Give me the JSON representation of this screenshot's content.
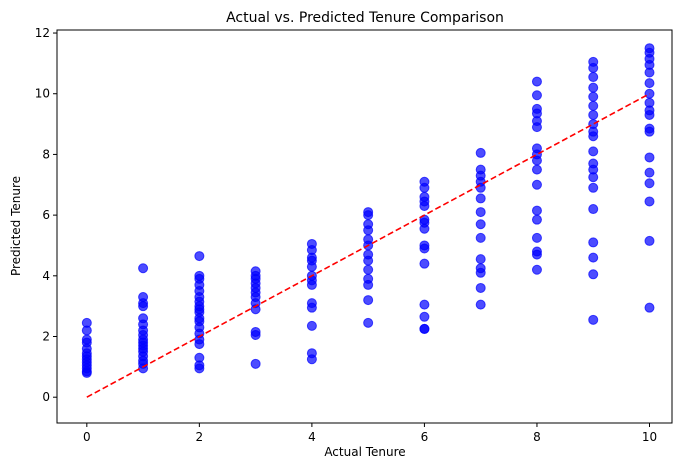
{
  "chart_data": {
    "type": "scatter",
    "title": "Actual vs. Predicted Tenure Comparison",
    "x_label": "Actual Tenure",
    "y_label": "Predicted Tenure",
    "xlim": [
      -0.53,
      10.4
    ],
    "ylim": [
      -0.85,
      12.1
    ],
    "xticks": [
      0,
      2,
      4,
      6,
      8,
      10
    ],
    "yticks": [
      0,
      2,
      4,
      6,
      8,
      10,
      12
    ],
    "points": {
      "color": "#0000ff",
      "x": [
        0,
        0,
        0,
        0,
        0,
        0,
        0,
        0,
        0,
        0,
        0,
        0,
        0,
        1,
        1,
        1,
        1,
        1,
        1,
        1,
        1,
        1,
        1,
        1,
        1,
        1,
        1,
        1,
        1,
        1,
        2,
        2,
        2,
        2,
        2,
        2,
        2,
        2,
        2,
        2,
        2,
        2,
        2,
        2,
        2,
        2,
        2,
        2,
        2,
        3,
        3,
        3,
        3,
        3,
        3,
        3,
        3,
        3,
        3,
        3,
        3,
        4,
        4,
        4,
        4,
        4,
        4,
        4,
        4,
        4,
        4,
        4,
        4,
        4,
        5,
        5,
        5,
        5,
        5,
        5,
        5,
        5,
        5,
        5,
        5,
        5,
        5,
        6,
        6,
        6,
        6,
        6,
        6,
        6,
        6,
        6,
        6,
        6,
        6,
        6,
        6,
        6,
        7,
        7,
        7,
        7,
        7,
        7,
        7,
        7,
        7,
        7,
        7,
        7,
        7,
        7,
        8,
        8,
        8,
        8,
        8,
        8,
        8,
        8,
        8,
        8,
        8,
        8,
        8,
        8,
        8,
        8,
        8,
        9,
        9,
        9,
        9,
        9,
        9,
        9,
        9,
        9,
        9,
        9,
        9,
        9,
        9,
        9,
        9,
        9,
        9,
        9,
        9,
        10,
        10,
        10,
        10,
        10,
        10,
        10,
        10,
        10,
        10,
        10,
        10,
        10,
        10,
        10,
        10,
        10,
        10
      ],
      "y": [
        2.45,
        2.2,
        1.9,
        1.8,
        1.6,
        1.45,
        1.35,
        1.25,
        1.15,
        1.05,
        0.95,
        0.85,
        0.8,
        4.25,
        3.3,
        3.1,
        3.0,
        2.6,
        2.4,
        2.2,
        2.05,
        1.9,
        1.8,
        1.7,
        1.6,
        1.5,
        1.35,
        1.2,
        1.1,
        0.95,
        4.65,
        4.0,
        3.9,
        3.7,
        3.5,
        3.3,
        3.15,
        3.0,
        2.9,
        2.8,
        2.6,
        2.5,
        2.3,
        2.1,
        1.9,
        1.75,
        1.3,
        1.05,
        0.95,
        4.15,
        4.0,
        3.9,
        3.75,
        3.6,
        3.45,
        3.3,
        3.1,
        2.9,
        2.15,
        2.05,
        1.1,
        5.05,
        4.85,
        4.6,
        4.5,
        4.3,
        4.0,
        3.85,
        3.7,
        3.1,
        2.95,
        2.35,
        1.45,
        1.25,
        6.1,
        6.0,
        5.7,
        5.5,
        5.2,
        5.0,
        4.7,
        4.5,
        4.2,
        3.9,
        3.7,
        3.2,
        2.45,
        7.1,
        6.9,
        6.6,
        6.45,
        6.3,
        5.85,
        5.75,
        5.55,
        5.0,
        4.9,
        4.4,
        3.05,
        2.65,
        2.25,
        2.25,
        8.05,
        7.5,
        7.3,
        7.1,
        6.9,
        6.55,
        6.1,
        5.7,
        5.25,
        4.55,
        4.25,
        4.1,
        3.6,
        3.05,
        10.4,
        9.95,
        9.5,
        9.35,
        9.1,
        8.9,
        8.2,
        8.0,
        7.8,
        7.5,
        7.0,
        6.15,
        5.85,
        5.25,
        4.8,
        4.7,
        4.2,
        11.05,
        10.85,
        10.55,
        10.2,
        9.9,
        9.6,
        9.3,
        9.0,
        8.75,
        8.6,
        8.1,
        7.7,
        7.5,
        7.25,
        6.9,
        6.2,
        5.1,
        4.6,
        4.05,
        2.55,
        11.5,
        11.35,
        11.15,
        10.95,
        10.7,
        10.35,
        10.0,
        9.7,
        9.45,
        9.3,
        8.85,
        8.75,
        7.9,
        7.4,
        7.05,
        6.45,
        5.15,
        2.95
      ]
    },
    "reference_line": {
      "color": "#ff0000",
      "style": "dashed",
      "x": [
        0,
        10
      ],
      "y": [
        0,
        10
      ]
    }
  }
}
